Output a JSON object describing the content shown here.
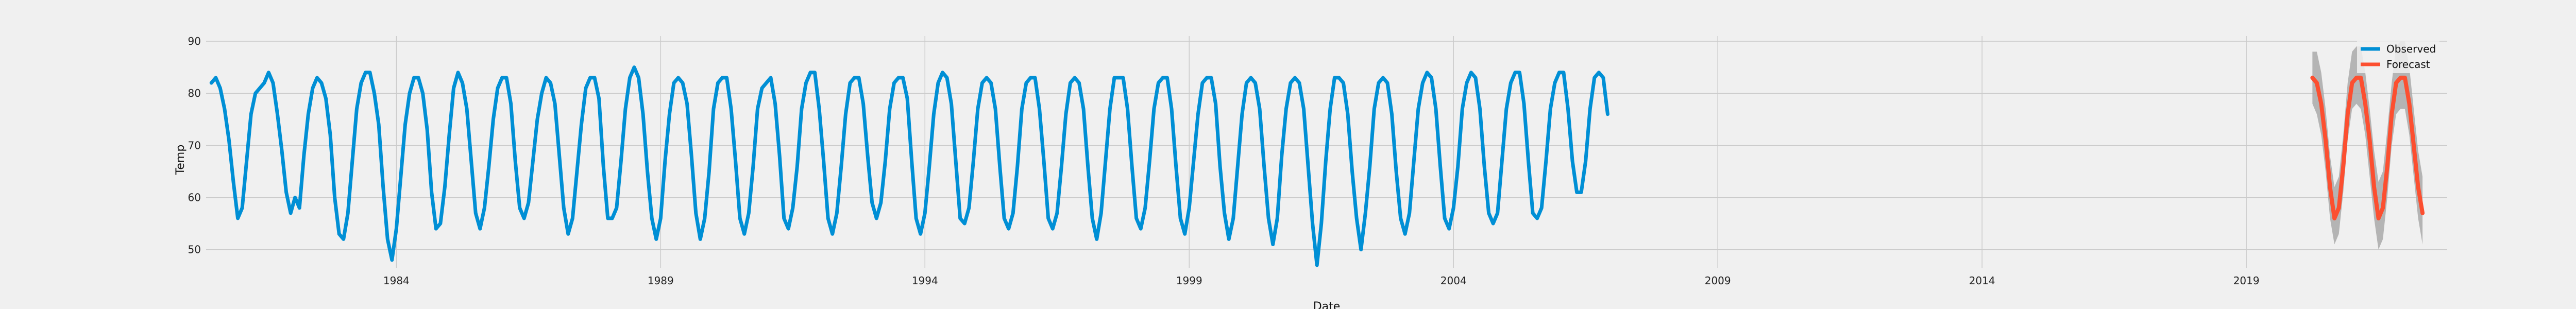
{
  "chart_data": {
    "type": "line",
    "xlabel": "Date",
    "ylabel": "Temp",
    "xlim": [
      1980.4,
      2022.8
    ],
    "ylim": [
      46.5,
      91
    ],
    "x_tick_labels": [
      "1984",
      "1989",
      "1994",
      "1999",
      "2004",
      "2009",
      "2014",
      "2019"
    ],
    "x_tick_values": [
      1984,
      1989,
      1994,
      1999,
      2004,
      2009,
      2014,
      2019
    ],
    "y_tick_labels": [
      "50",
      "60",
      "70",
      "80",
      "90"
    ],
    "y_tick_values": [
      50,
      60,
      70,
      80,
      90
    ],
    "grid": true,
    "legend_position": "top-right",
    "series": [
      {
        "name": "Observed",
        "color": "#008fd5",
        "x_start": 1980.5,
        "x_step": 0.0833333,
        "values": [
          82,
          83,
          81,
          77,
          71,
          63,
          56,
          58,
          67,
          76,
          80,
          81,
          82,
          84,
          82,
          76,
          69,
          61,
          57,
          60,
          58,
          68,
          76,
          81,
          83,
          82,
          79,
          72,
          60,
          53,
          52,
          57,
          67,
          77,
          82,
          84,
          84,
          80,
          74,
          62,
          52,
          48,
          54,
          64,
          74,
          80,
          83,
          83,
          80,
          73,
          61,
          54,
          55,
          62,
          72,
          81,
          84,
          82,
          77,
          67,
          57,
          54,
          58,
          66,
          75,
          81,
          83,
          83,
          78,
          67,
          58,
          56,
          59,
          67,
          75,
          80,
          83,
          82,
          78,
          68,
          58,
          53,
          56,
          65,
          74,
          81,
          83,
          83,
          79,
          66,
          56,
          56,
          58,
          67,
          77,
          83,
          85,
          83,
          76,
          65,
          56,
          52,
          56,
          67,
          76,
          82,
          83,
          82,
          78,
          68,
          57,
          52,
          56,
          65,
          77,
          82,
          83,
          83,
          77,
          67,
          56,
          53,
          57,
          66,
          77,
          81,
          82,
          83,
          78,
          68,
          56,
          54,
          58,
          66,
          77,
          82,
          84,
          84,
          77,
          67,
          56,
          53,
          57,
          66,
          76,
          82,
          83,
          83,
          78,
          68,
          59,
          56,
          59,
          67,
          77,
          82,
          83,
          83,
          79,
          67,
          56,
          53,
          57,
          66,
          76,
          82,
          84,
          83,
          78,
          67,
          56,
          55,
          58,
          67,
          77,
          82,
          83,
          82,
          77,
          66,
          56,
          54,
          57,
          66,
          77,
          82,
          83,
          83,
          77,
          67,
          56,
          54,
          57,
          66,
          76,
          82,
          83,
          82,
          77,
          66,
          56,
          52,
          57,
          67,
          77,
          83,
          83,
          83,
          77,
          66,
          56,
          54,
          58,
          67,
          77,
          82,
          83,
          83,
          77,
          66,
          56,
          53,
          58,
          67,
          76,
          82,
          83,
          83,
          78,
          66,
          57,
          52,
          56,
          66,
          76,
          82,
          83,
          82,
          77,
          66,
          56,
          51,
          56,
          68,
          77,
          82,
          83,
          82,
          77,
          66,
          55,
          47,
          55,
          67,
          77,
          83,
          83,
          82,
          76,
          65,
          56,
          50,
          57,
          66,
          77,
          82,
          83,
          82,
          76,
          65,
          56,
          53,
          57,
          67,
          77,
          82,
          84,
          83,
          77,
          66,
          56,
          54,
          58,
          66,
          77,
          82,
          84,
          83,
          77,
          66,
          57,
          55,
          57,
          67,
          77,
          82,
          84,
          84,
          78,
          67,
          57,
          56,
          58,
          67,
          77,
          82,
          84,
          84,
          77,
          67,
          61,
          61,
          67,
          77,
          83,
          84,
          83,
          76
        ]
      },
      {
        "name": "Forecast",
        "color": "#fc4f30",
        "x_start": 2020.25,
        "x_step": 0.0833333,
        "values": [
          83,
          82,
          78,
          71,
          62,
          56,
          58,
          66,
          76,
          82,
          83,
          83,
          78,
          71,
          62,
          56,
          58,
          66,
          76,
          82,
          83,
          83,
          78,
          70,
          62,
          57
        ],
        "lower": [
          78,
          76,
          72,
          65,
          56,
          51,
          53,
          61,
          71,
          77,
          78,
          77,
          72,
          64,
          56,
          50,
          52,
          60,
          70,
          76,
          77,
          77,
          72,
          64,
          56,
          51
        ],
        "upper": [
          88,
          88,
          84,
          77,
          68,
          62,
          64,
          72,
          82,
          88,
          89,
          89,
          84,
          77,
          69,
          63,
          65,
          73,
          82,
          89,
          90,
          90,
          85,
          77,
          69,
          64
        ],
        "band_color": "#a9a9a9"
      }
    ]
  }
}
